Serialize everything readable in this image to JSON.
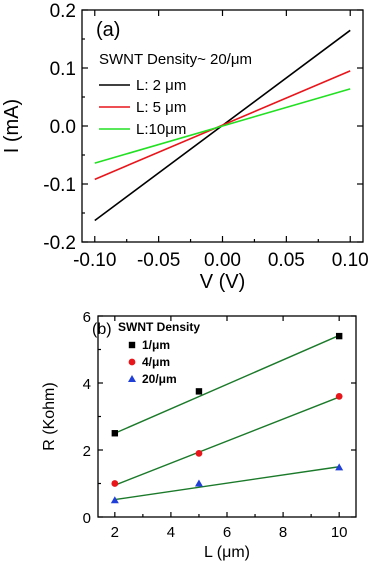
{
  "chart_data": [
    {
      "type": "line",
      "panel_label": "(a)",
      "legend_title": "SWNT Density~ 20/μm",
      "xlabel": "V (V)",
      "ylabel": "I (mA)",
      "xlim": [
        -0.11,
        0.11
      ],
      "ylim": [
        -0.2,
        0.2
      ],
      "xticks": [
        -0.1,
        -0.05,
        0.0,
        0.05,
        0.1
      ],
      "xtick_labels": [
        "-0.10",
        "-0.05",
        "0.00",
        "0.05",
        "0.10"
      ],
      "yticks": [
        -0.2,
        -0.1,
        0.0,
        0.1,
        0.2
      ],
      "ytick_labels": [
        "-0.2",
        "-0.1",
        "0.0",
        "0.1",
        "0.2"
      ],
      "legend_position": "top-left",
      "series": [
        {
          "name": "L: 2 μm",
          "color": "#000000",
          "x": [
            -0.1,
            0.1
          ],
          "y": [
            -0.163,
            0.165
          ]
        },
        {
          "name": "L: 5 μm",
          "color": "#e8151b",
          "x": [
            -0.1,
            0.1
          ],
          "y": [
            -0.092,
            0.095
          ]
        },
        {
          "name": "L:10μm",
          "color": "#22e022",
          "x": [
            -0.1,
            0.1
          ],
          "y": [
            -0.064,
            0.064
          ]
        }
      ]
    },
    {
      "type": "scatter",
      "panel_label": "(b)",
      "legend_title": "SWNT Density",
      "xlabel": "L (μm)",
      "ylabel": "R (Kohm)",
      "xlim": [
        1.4,
        10.6
      ],
      "ylim": [
        0,
        6
      ],
      "xticks": [
        2,
        4,
        6,
        8,
        10
      ],
      "xtick_labels": [
        "2",
        "4",
        "6",
        "8",
        "10"
      ],
      "yticks": [
        0,
        2,
        4,
        6
      ],
      "ytick_labels": [
        "0",
        "2",
        "4",
        "6"
      ],
      "legend_position": "top-left",
      "fit_color": "#1b7a2a",
      "series": [
        {
          "name": "1/μm",
          "color": "#000000",
          "marker": "square",
          "x": [
            2,
            5,
            10
          ],
          "y": [
            2.5,
            3.75,
            5.4
          ],
          "fit": [
            2.5,
            5.42
          ]
        },
        {
          "name": "4/μm",
          "color": "#e8151b",
          "marker": "circle",
          "x": [
            2,
            5,
            10
          ],
          "y": [
            1.0,
            1.9,
            3.6
          ],
          "fit": [
            0.95,
            3.58
          ]
        },
        {
          "name": "20/μm",
          "color": "#1f3fd8",
          "marker": "triangle",
          "x": [
            2,
            5,
            10
          ],
          "y": [
            0.5,
            1.0,
            1.48
          ],
          "fit": [
            0.52,
            1.5
          ]
        }
      ]
    }
  ]
}
